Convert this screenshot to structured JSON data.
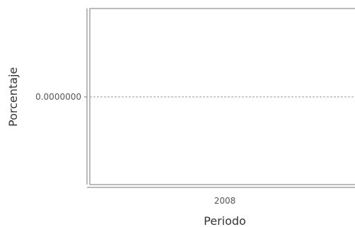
{
  "chart_data": {
    "type": "line",
    "title": "",
    "xlabel": "Periodo",
    "ylabel": "Porcentaje",
    "categories": [
      "2008"
    ],
    "series": [
      {
        "values": [
          0
        ]
      }
    ],
    "ytick_labels": [
      "0.0000000"
    ],
    "grid": "horizontal dashed",
    "legend": "none",
    "colors": {
      "axis": "#555555",
      "grid": "#999999",
      "frame": "#777777"
    }
  }
}
